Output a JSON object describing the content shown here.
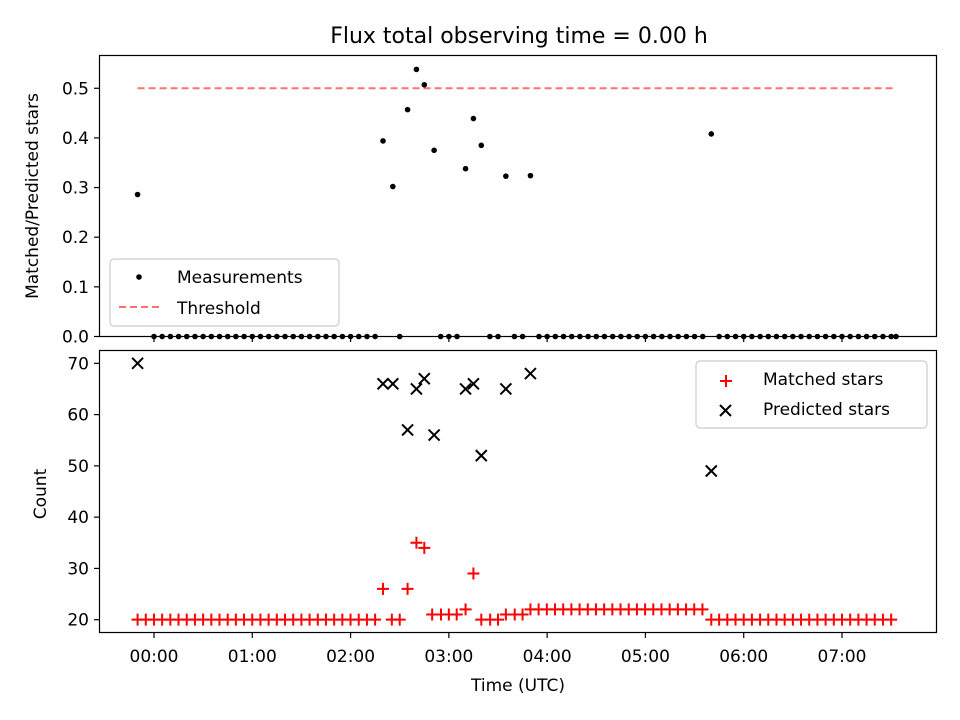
{
  "title": "Flux total observing time = 0.00 h",
  "colors": {
    "measurement": "#000000",
    "threshold": "#ff7070",
    "matched": "#ff0000",
    "predicted": "#000000"
  },
  "chart_data": [
    {
      "type": "scatter",
      "ylabel": "Matched/Predicted stars",
      "ylim": [
        0,
        0.566
      ],
      "yticks": [
        "0.0",
        "0.1",
        "0.2",
        "0.3",
        "0.4",
        "0.5"
      ],
      "legend": {
        "placement": "lower-left",
        "entries": [
          "Measurements",
          "Threshold"
        ]
      },
      "threshold": {
        "name": "Threshold",
        "y": 0.5,
        "x_start": -0.167,
        "x_end": 7.55
      },
      "measurements_nonzero": [
        {
          "x": -0.167,
          "y": 0.286
        },
        {
          "x": 2.33,
          "y": 0.394
        },
        {
          "x": 2.43,
          "y": 0.302
        },
        {
          "x": 2.58,
          "y": 0.457
        },
        {
          "x": 2.67,
          "y": 0.538
        },
        {
          "x": 2.75,
          "y": 0.507
        },
        {
          "x": 2.85,
          "y": 0.375
        },
        {
          "x": 3.17,
          "y": 0.338
        },
        {
          "x": 3.25,
          "y": 0.439
        },
        {
          "x": 3.33,
          "y": 0.385
        },
        {
          "x": 3.58,
          "y": 0.323
        },
        {
          "x": 3.83,
          "y": 0.324
        },
        {
          "x": 5.67,
          "y": 0.408
        }
      ],
      "measurements_zero_x": [
        0.0,
        0.083,
        0.167,
        0.25,
        0.333,
        0.417,
        0.5,
        0.583,
        0.667,
        0.75,
        0.833,
        0.917,
        1.0,
        1.083,
        1.167,
        1.25,
        1.333,
        1.417,
        1.5,
        1.583,
        1.667,
        1.75,
        1.833,
        1.917,
        2.0,
        2.083,
        2.167,
        2.25,
        2.5,
        2.917,
        3.0,
        3.083,
        3.417,
        3.5,
        3.667,
        3.75,
        3.917,
        4.0,
        4.083,
        4.167,
        4.25,
        4.333,
        4.417,
        4.5,
        4.583,
        4.667,
        4.75,
        4.833,
        4.917,
        5.0,
        5.083,
        5.167,
        5.25,
        5.333,
        5.417,
        5.5,
        5.583,
        5.75,
        5.833,
        5.917,
        6.0,
        6.083,
        6.167,
        6.25,
        6.333,
        6.417,
        6.5,
        6.583,
        6.667,
        6.75,
        6.833,
        6.917,
        7.0,
        7.083,
        7.167,
        7.25,
        7.333,
        7.417,
        7.5,
        7.55
      ]
    },
    {
      "type": "scatter",
      "ylabel": "Count",
      "xlabel": "Time (UTC)",
      "ylim": [
        17.5,
        72.5
      ],
      "yticks": [
        "20",
        "30",
        "40",
        "50",
        "60",
        "70"
      ],
      "xticks": [
        "00:00",
        "01:00",
        "02:00",
        "03:00",
        "04:00",
        "05:00",
        "06:00",
        "07:00"
      ],
      "xlim": [
        -0.4,
        7.85
      ],
      "legend": {
        "placement": "upper-right",
        "entries": [
          "Matched stars",
          "Predicted stars"
        ]
      },
      "matched": [
        {
          "x": 2.33,
          "y": 26
        },
        {
          "x": 2.58,
          "y": 26
        },
        {
          "x": 2.67,
          "y": 35
        },
        {
          "x": 2.75,
          "y": 34
        },
        {
          "x": 2.83,
          "y": 21
        },
        {
          "x": 2.92,
          "y": 21
        },
        {
          "x": 3.0,
          "y": 21
        },
        {
          "x": 3.08,
          "y": 21
        },
        {
          "x": 3.17,
          "y": 22
        },
        {
          "x": 3.25,
          "y": 29
        },
        {
          "x": 3.58,
          "y": 21
        },
        {
          "x": 3.67,
          "y": 21
        },
        {
          "x": 3.75,
          "y": 21
        },
        {
          "x": 5.67,
          "y": 20
        }
      ],
      "matched_base20": {
        "from": -0.167,
        "to": 2.25,
        "extra": [
          2.42,
          2.5,
          3.33,
          3.42,
          3.5
        ]
      },
      "matched_base22": {
        "from": 3.83,
        "to": 5.58
      },
      "matched_tail20": {
        "from": 5.75,
        "to": 7.55
      },
      "predicted": [
        {
          "x": -0.167,
          "y": 70
        },
        {
          "x": 2.33,
          "y": 66
        },
        {
          "x": 2.43,
          "y": 66
        },
        {
          "x": 2.58,
          "y": 57
        },
        {
          "x": 2.67,
          "y": 65
        },
        {
          "x": 2.75,
          "y": 67
        },
        {
          "x": 2.85,
          "y": 56
        },
        {
          "x": 3.17,
          "y": 65
        },
        {
          "x": 3.25,
          "y": 66
        },
        {
          "x": 3.33,
          "y": 52
        },
        {
          "x": 3.58,
          "y": 65
        },
        {
          "x": 3.83,
          "y": 68
        },
        {
          "x": 5.67,
          "y": 49
        }
      ]
    }
  ]
}
